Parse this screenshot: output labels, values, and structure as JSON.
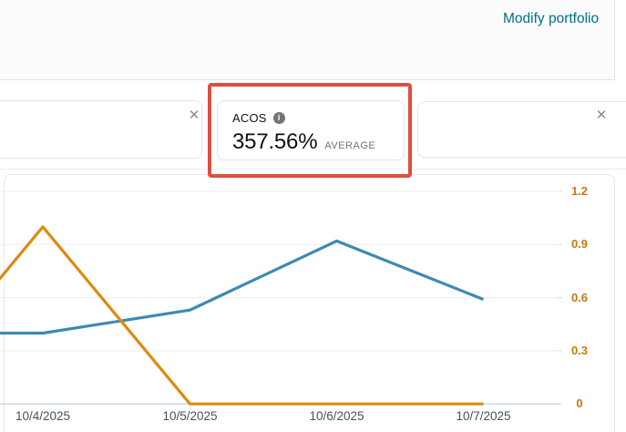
{
  "header": {
    "modify_portfolio_label": "Modify portfolio",
    "link_color": "#007185"
  },
  "icons": {
    "close_icon": "✕",
    "info_icon_letter": "i"
  },
  "cards": {
    "acos": {
      "title": "ACOS",
      "value": "357.56%",
      "qualifier": "AVERAGE"
    }
  },
  "annotation": {
    "highlight_color": "#dc4f3e"
  },
  "chart_data": {
    "type": "line",
    "title": "",
    "x_axis": {
      "categories": [
        "10/4/2025",
        "10/5/2025",
        "10/6/2025",
        "10/7/2025"
      ],
      "label_color": "#47515c"
    },
    "y_axis": {
      "side": "right",
      "ticks": [
        0,
        0.3,
        0.6,
        0.9,
        1.2
      ],
      "range": [
        0,
        1.2
      ],
      "label_color": "#c5790d"
    },
    "grid": true,
    "legend": "none",
    "series": [
      {
        "name": "blue-line",
        "color": "#3d8ab3",
        "values": [
          0.4,
          0.53,
          0.92,
          0.59
        ],
        "left_edge_value": 0.4
      },
      {
        "name": "orange-line",
        "color": "#de8a0e",
        "values": [
          1.0,
          0,
          0,
          0
        ],
        "left_edge_value": 0.69
      }
    ]
  }
}
